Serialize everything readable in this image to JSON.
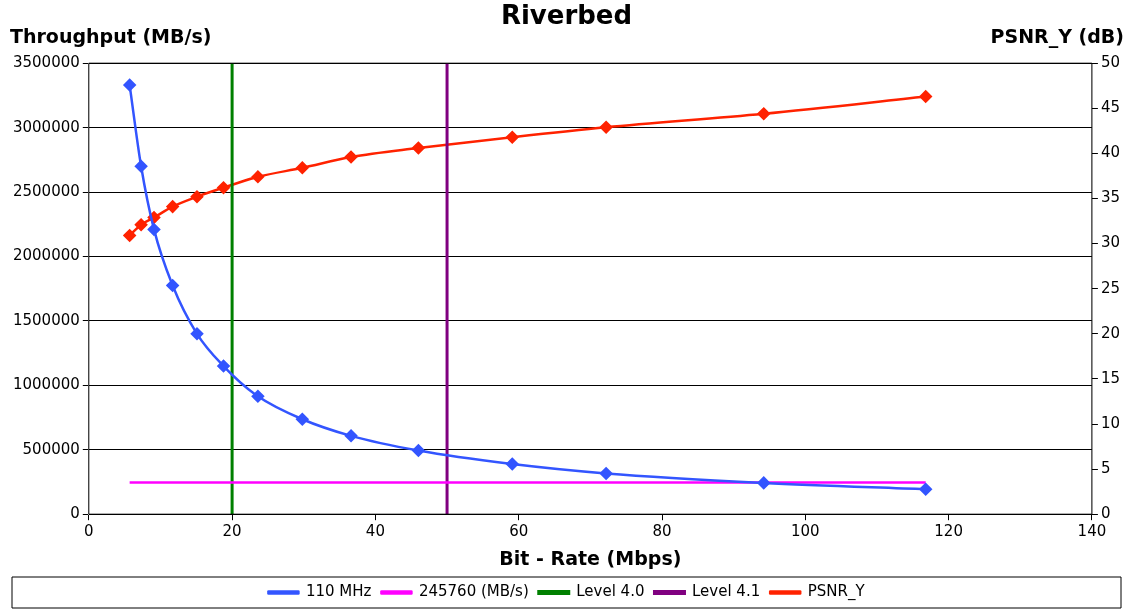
{
  "chart_data": {
    "type": "line",
    "title": "Riverbed",
    "xlabel": "Bit - Rate (Mbps)",
    "ylabel": "Throughput (MB/s)",
    "y2label": "PSNR_Y (dB)",
    "x": [
      5.7,
      7.3,
      9.1,
      11.7,
      15.1,
      18.8,
      23.6,
      29.8,
      36.6,
      46.0,
      59.1,
      72.2,
      94.2,
      116.8
    ],
    "series": [
      {
        "name": "110 MHz",
        "color": "#3355ff",
        "values": [
          3330000,
          2700000,
          2210000,
          1775000,
          1400000,
          1150000,
          915000,
          737000,
          608000,
          494000,
          389000,
          316000,
          243000,
          194000
        ]
      },
      {
        "name": "245760 (MB/s)",
        "color": "#ff00ff",
        "x": [
          5.7,
          116.8
        ],
        "values": [
          245760,
          245760
        ],
        "marker": "none"
      },
      {
        "name": "PSNR_Y",
        "color": "#ff2200",
        "axis": "y2",
        "values": [
          30.9,
          32.1,
          32.9,
          34.1,
          35.2,
          36.2,
          37.4,
          38.4,
          39.6,
          40.6,
          41.8,
          42.9,
          44.4,
          46.3
        ]
      }
    ],
    "ref_lines": [
      {
        "axis": "x",
        "value": 20,
        "label": "Level 4.0",
        "color": "#008000"
      },
      {
        "axis": "x",
        "value": 50,
        "label": "Level 4.1",
        "color": "#800080"
      }
    ],
    "xlim": [
      0,
      140
    ],
    "xticks": [
      0,
      20,
      40,
      60,
      80,
      100,
      120,
      140
    ],
    "ylim": [
      0,
      3500000
    ],
    "yticks": [
      0,
      500000,
      1000000,
      1500000,
      2000000,
      2500000,
      3000000,
      3500000
    ],
    "y2lim": [
      0,
      50
    ],
    "y2ticks": [
      0,
      5,
      10,
      15,
      20,
      25,
      30,
      35,
      40,
      45,
      50
    ],
    "grid": "y",
    "legend": "bottom",
    "marker": "diamond",
    "line_style": "solid"
  }
}
